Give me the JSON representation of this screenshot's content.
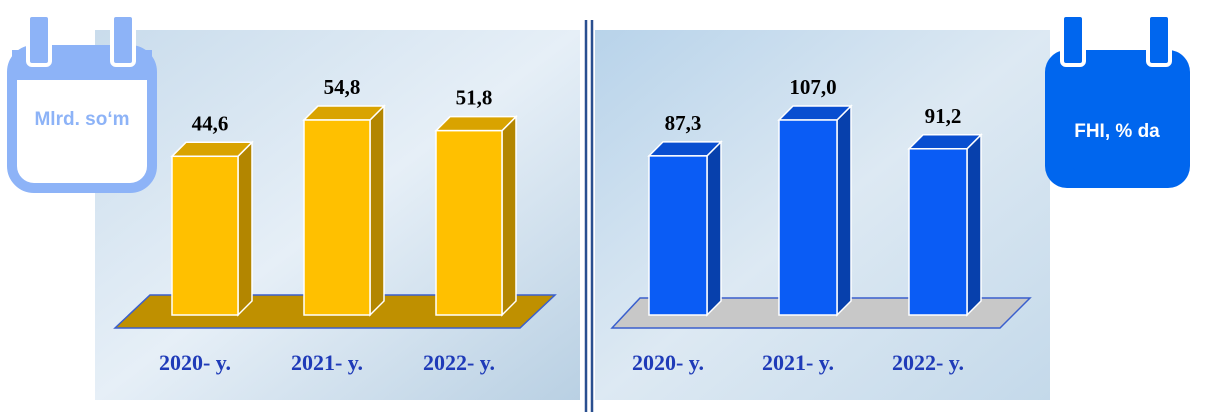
{
  "chart_data": [
    {
      "type": "bar",
      "unit": "Mlrd. so‘m",
      "categories": [
        "2020- y.",
        "2021- y.",
        "2022- y."
      ],
      "values": [
        44.6,
        54.8,
        51.8
      ],
      "value_labels": [
        "44,6",
        "54,8",
        "51,8"
      ],
      "color": "#ffc000"
    },
    {
      "type": "bar",
      "unit": "FHI, % da",
      "categories": [
        "2020- y.",
        "2021- y.",
        "2022- y."
      ],
      "values": [
        87.3,
        107.0,
        91.2
      ],
      "value_labels": [
        "87,3",
        "107,0",
        "91,2"
      ],
      "color": "#0a5cf5"
    }
  ]
}
